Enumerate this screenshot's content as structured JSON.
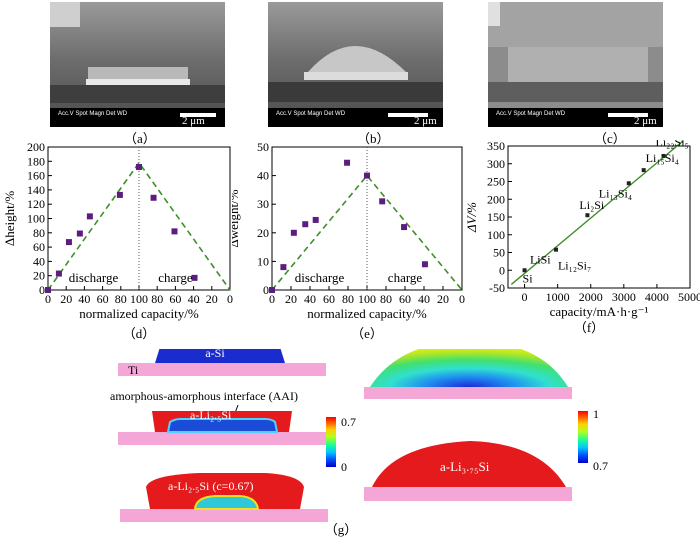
{
  "sem": [
    {
      "label": "（a）",
      "meta": "Acc.V  Spot Magn   Det  WD",
      "scale": "2 μm"
    },
    {
      "label": "（b）",
      "meta": "Acc.V  Spot Magn   Det  WD",
      "scale": "2 μm"
    },
    {
      "label": "（c）",
      "meta": "Acc.V  Spot Magn   Det  WD",
      "scale": "2 μm"
    }
  ],
  "colors": {
    "marker": "#5b1e7e",
    "fit": "#3e8e2a",
    "sem_bg": "#777777",
    "substrate": "#f4a6d7",
    "si": "#1b2ccf",
    "lithiated": "#e41a1c"
  },
  "chart_data": [
    {
      "id": "d",
      "type": "scatter",
      "label": "（d）",
      "ylabel": "Δheight/%",
      "xlabel": "normalized capacity/%",
      "ylim": [
        0,
        200
      ],
      "yticks": [
        "0",
        "20",
        "40",
        "60",
        "80",
        "100",
        "120",
        "140",
        "160",
        "180",
        "200"
      ],
      "xticks": [
        "0",
        "20",
        "40",
        "60",
        "80",
        "100",
        "80",
        "60",
        "40",
        "20",
        "0"
      ],
      "regions": [
        "discharge",
        "charge"
      ],
      "points": [
        [
          0,
          0
        ],
        [
          12,
          23
        ],
        [
          23,
          67
        ],
        [
          35,
          79
        ],
        [
          46,
          103
        ],
        [
          79,
          133
        ],
        [
          100,
          172
        ],
        [
          116,
          129
        ],
        [
          139,
          82
        ],
        [
          161,
          17
        ]
      ],
      "fit": [
        [
          0,
          0
        ],
        [
          100,
          178
        ],
        [
          200,
          0
        ]
      ]
    },
    {
      "id": "e",
      "type": "scatter",
      "label": "（e）",
      "ylabel": "Δweight/%",
      "xlabel": "normalized capacity/%",
      "ylim": [
        0,
        50
      ],
      "yticks": [
        "0",
        "10",
        "20",
        "30",
        "40",
        "50"
      ],
      "xticks": [
        "0",
        "20",
        "40",
        "60",
        "80",
        "100",
        "80",
        "60",
        "40",
        "20",
        "0"
      ],
      "regions": [
        "discharge",
        "charge"
      ],
      "points": [
        [
          0,
          0
        ],
        [
          12,
          8
        ],
        [
          23,
          20
        ],
        [
          35,
          23
        ],
        [
          46,
          24.5
        ],
        [
          79,
          44.5
        ],
        [
          100,
          40
        ],
        [
          116,
          31
        ],
        [
          139,
          22
        ],
        [
          161,
          9
        ]
      ],
      "fit": [
        [
          0,
          0
        ],
        [
          100,
          40
        ],
        [
          200,
          0
        ]
      ]
    },
    {
      "id": "f",
      "type": "scatter",
      "label": "（f）",
      "ylabel": "ΔV/%",
      "xlabel": "capacity/mA·h·g⁻¹",
      "xlim": [
        -500,
        5000
      ],
      "ylim": [
        -50,
        350
      ],
      "xticks": [
        "0",
        "1000",
        "2000",
        "3000",
        "4000",
        "5000"
      ],
      "yticks": [
        "-50",
        "0",
        "50",
        "100",
        "150",
        "200",
        "250",
        "300",
        "350"
      ],
      "points": [
        [
          0,
          0
        ],
        [
          950,
          58
        ],
        [
          1900,
          155
        ],
        [
          3150,
          245
        ],
        [
          3600,
          282
        ],
        [
          4200,
          322
        ]
      ],
      "fit": [
        [
          -400,
          -40
        ],
        [
          4800,
          365
        ]
      ],
      "annotations": [
        {
          "text": "Si",
          "pt": 0
        },
        {
          "text": "LiSi",
          "pt": 1
        },
        {
          "text": "Li₁₂Si₇",
          "pt": 1
        },
        {
          "text": "Li₂Si",
          "pt": 2
        },
        {
          "text": "Li₁₃Si₄",
          "pt": 3
        },
        {
          "text": "Li₁₅Si₄",
          "pt": 4
        },
        {
          "text": "Li₂₂Si₅",
          "pt": 5
        }
      ]
    }
  ],
  "sim": {
    "label": "（g）",
    "ti": "Ti",
    "asi": "a-Si",
    "aai": "amorphous-amorphous interface (AAI)",
    "li1": "a-Li₂.₅Si",
    "li2": "a-Li₂.₅Si (c=0.67)",
    "li3": "a-Li₃.₇₅Si",
    "cbar1": {
      "max": "0.7",
      "min": "0"
    },
    "cbar2": {
      "max": "1",
      "min": "0.7"
    }
  }
}
